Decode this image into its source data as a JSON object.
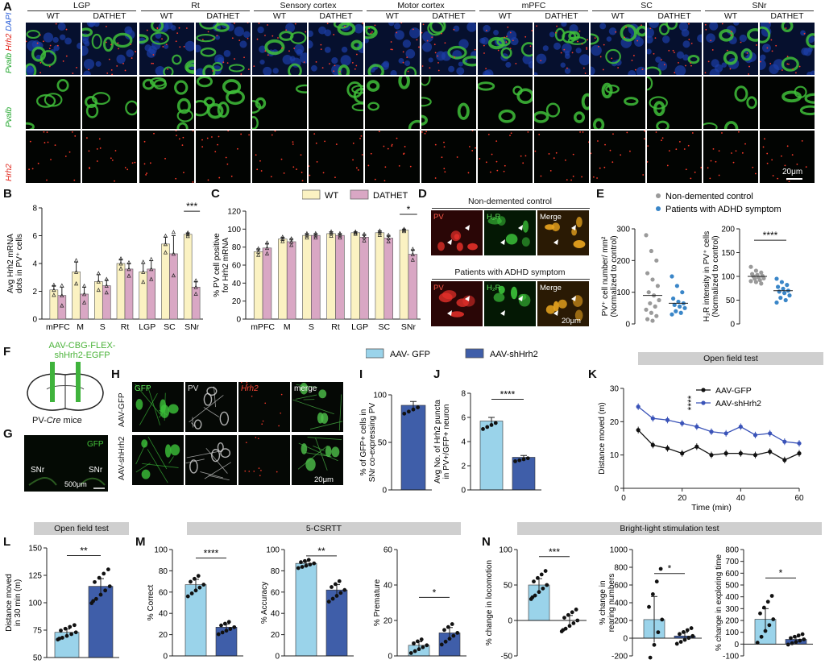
{
  "panels": {
    "A": "A",
    "B": "B",
    "C": "C",
    "D": "D",
    "E": "E",
    "F": "F",
    "G": "G",
    "H": "H",
    "I": "I",
    "J": "J",
    "K": "K",
    "L": "L",
    "M": "M",
    "N": "N"
  },
  "panel_a": {
    "regions": [
      "LGP",
      "Rt",
      "Sensory cortex",
      "Motor cortex",
      "mPFC",
      "SC",
      "SNr"
    ],
    "genotypes": [
      "WT",
      "DATHET"
    ],
    "rows": [
      {
        "parts": [
          {
            "t": "Pvalb",
            "c": "#1fa52a"
          },
          {
            "t": " Hrh2",
            "c": "#e0261c"
          },
          {
            "t": " DAPI",
            "c": "#2b5fd8"
          }
        ]
      },
      {
        "parts": [
          {
            "t": "Pvalb",
            "c": "#1fa52a"
          }
        ]
      },
      {
        "parts": [
          {
            "t": "Hrh2",
            "c": "#e0261c"
          }
        ]
      }
    ],
    "scale": "20μm"
  },
  "legend_bc": {
    "wt": "WT",
    "dathet": "DATHET",
    "wt_color": "#fbf2c2",
    "dathet_color": "#d9a7c4"
  },
  "panel_d": {
    "top_title": "Non-demented control",
    "bottom_title": "Patients with ADHD symptom",
    "labels": [
      "PV",
      "H₂R",
      "Merge"
    ],
    "scale": "20μm"
  },
  "legend_e": {
    "ctrl": "Non-demented control",
    "adhd": "Patients with ADHD symptom",
    "ctrl_color": "#9a9a9a",
    "adhd_color": "#3a86c8"
  },
  "panel_f": {
    "virus": "AAV-CBG-FLEX-\nshHrh2-EGFP",
    "mouse_pre": "PV-",
    "mouse_ital": "Cre",
    "mouse_post": " mice"
  },
  "panel_g": {
    "gfp": "GFP",
    "snr_l": "SNr",
    "snr_r": "SNr",
    "scale": "500μm"
  },
  "panel_h": {
    "cols": [
      "GFP",
      "PV",
      "Hrh2",
      "merge"
    ],
    "rows": [
      "AAV-GFP",
      "AAV-shHrh2"
    ],
    "scale": "20μm"
  },
  "legend_ij": {
    "gfp": "AAV- GFP",
    "sh": "AAV-shHrh2",
    "gfp_color": "#9ad3ea",
    "sh_color": "#3f5ea9"
  },
  "section_titles": {
    "k": "Open field test",
    "l": "Open field test",
    "m": "5-CSRTT",
    "n": "Bright-light stimulation test"
  },
  "chart_data": [
    {
      "panel": "B",
      "type": "bar",
      "title": "",
      "ylabel": "Avg Hrh2 mRNA dots in PV+ cells",
      "ylim": [
        0,
        8
      ],
      "yticks": [
        0,
        2,
        4,
        6,
        8
      ],
      "categories": [
        "mPFC",
        "M",
        "S",
        "Rt",
        "LGP",
        "SC",
        "SNr"
      ],
      "series": [
        {
          "name": "WT",
          "values": [
            2.1,
            3.4,
            2.7,
            4.0,
            3.4,
            5.4,
            6.1
          ],
          "err": [
            0.3,
            0.7,
            0.5,
            0.3,
            0.6,
            0.5,
            0.1
          ]
        },
        {
          "name": "DATHET",
          "values": [
            1.7,
            1.8,
            2.4,
            3.6,
            3.6,
            4.7,
            2.3
          ],
          "err": [
            0.6,
            0.5,
            0.4,
            0.4,
            0.6,
            1.3,
            0.4
          ]
        }
      ],
      "annotations": [
        {
          "text": "***",
          "category": "SNr"
        }
      ]
    },
    {
      "panel": "C",
      "type": "bar",
      "title": "",
      "ylabel": "% PV cell positive for Hrh2 mRNA",
      "ylim": [
        0,
        120
      ],
      "yticks": [
        0,
        20,
        40,
        60,
        80,
        100,
        120
      ],
      "categories": [
        "mPFC",
        "M",
        "S",
        "Rt",
        "LGP",
        "SC",
        "SNr"
      ],
      "series": [
        {
          "name": "WT",
          "values": [
            75,
            89,
            93,
            95,
            96,
            96,
            99
          ],
          "err": [
            3,
            2,
            2,
            2,
            1,
            2,
            1
          ]
        },
        {
          "name": "DATHET",
          "values": [
            79,
            86,
            93,
            93,
            91,
            90,
            72
          ],
          "err": [
            5,
            3,
            2,
            2,
            3,
            3,
            5
          ]
        }
      ],
      "annotations": [
        {
          "text": "*",
          "category": "SNr"
        }
      ]
    },
    {
      "panel": "E-left",
      "type": "scatter",
      "ylabel": "PV+ cell number/ mm² (Normalized to control)",
      "ylim": [
        0,
        300
      ],
      "yticks": [
        0,
        100,
        200,
        300
      ],
      "categories": [
        "Non-demented control",
        "Patients with ADHD symptom"
      ],
      "series": [
        {
          "name": "Non-demented control",
          "values": [
            280,
            230,
            200,
            160,
            140,
            120,
            100,
            90,
            75,
            65,
            55,
            45,
            35,
            25,
            15,
            10
          ]
        },
        {
          "name": "Patients with ADHD symptom",
          "values": [
            150,
            120,
            100,
            80,
            70,
            65,
            60,
            55,
            50,
            40,
            35,
            30
          ]
        }
      ]
    },
    {
      "panel": "E-right",
      "type": "scatter",
      "ylabel": "H2R intensity in PV+ cells (Normalized to control)",
      "ylim": [
        0,
        200
      ],
      "yticks": [
        0,
        50,
        100,
        150,
        200
      ],
      "categories": [
        "Non-demented control",
        "Patients with ADHD symptom"
      ],
      "series": [
        {
          "name": "Non-demented control",
          "values": [
            120,
            112,
            108,
            105,
            103,
            101,
            100,
            98,
            96,
            95,
            92,
            90,
            88,
            85
          ]
        },
        {
          "name": "Patients with ADHD symptom",
          "values": [
            95,
            88,
            82,
            78,
            74,
            70,
            68,
            65,
            60,
            55,
            50,
            45
          ]
        }
      ],
      "annotations": [
        {
          "text": "****"
        }
      ]
    },
    {
      "panel": "I",
      "type": "bar",
      "ylabel": "% of GFP+ cells in SNr co-expressing PV",
      "ylim": [
        0,
        100
      ],
      "yticks": [
        0,
        50,
        100
      ],
      "categories": [
        ""
      ],
      "series": [
        {
          "name": "AAV-shHrh2",
          "values": [
            89
          ],
          "err": [
            4
          ]
        }
      ]
    },
    {
      "panel": "J",
      "type": "bar",
      "ylabel": "Avg No. of Hrh2 puncta in PV+/GFP+ neuron",
      "ylim": [
        0,
        8
      ],
      "yticks": [
        0,
        2,
        4,
        6,
        8
      ],
      "categories": [
        "AAV-GFP",
        "AAV-shHrh2"
      ],
      "series": [
        {
          "values": [
            5.7,
            2.7
          ],
          "err": [
            0.3,
            0.15
          ]
        }
      ],
      "annotations": [
        {
          "text": "****"
        }
      ]
    },
    {
      "panel": "K",
      "type": "line",
      "xlabel": "Time (min)",
      "ylabel": "Distance moved (m)",
      "xlim": [
        0,
        60
      ],
      "ylim": [
        0,
        30
      ],
      "xticks": [
        0,
        20,
        40,
        60
      ],
      "yticks": [
        0,
        10,
        20,
        30
      ],
      "x": [
        5,
        10,
        15,
        20,
        25,
        30,
        35,
        40,
        45,
        50,
        55,
        60
      ],
      "series": [
        {
          "name": "AAV-GFP",
          "values": [
            17.5,
            13,
            12,
            10.5,
            12.5,
            10,
            10.5,
            10.5,
            10,
            11,
            8.5,
            10.5
          ]
        },
        {
          "name": "AAV-shHrh2",
          "values": [
            24.5,
            21,
            20.5,
            19.5,
            18.5,
            17,
            16.5,
            18.5,
            16,
            16.5,
            14,
            13.5
          ]
        }
      ],
      "annotations": [
        {
          "text": "****"
        }
      ]
    },
    {
      "panel": "L",
      "type": "bar",
      "ylabel": "Distance moved in 30 min (m)",
      "ylim": [
        50,
        150
      ],
      "yticks": [
        50,
        75,
        100,
        125,
        150
      ],
      "categories": [
        "AAV-GFP",
        "AAV-shHrh2"
      ],
      "series": [
        {
          "values": [
            73,
            115
          ],
          "err": [
            3,
            7
          ]
        }
      ],
      "annotations": [
        {
          "text": "**"
        }
      ]
    },
    {
      "panel": "M1",
      "type": "bar",
      "ylabel": "% Correct",
      "ylim": [
        0,
        100
      ],
      "yticks": [
        0,
        20,
        40,
        60,
        80,
        100
      ],
      "categories": [
        "AAV-GFP",
        "AAV-shHrh2"
      ],
      "series": [
        {
          "values": [
            67,
            27
          ],
          "err": [
            5,
            3
          ]
        }
      ],
      "annotations": [
        {
          "text": "****"
        }
      ]
    },
    {
      "panel": "M2",
      "type": "bar",
      "ylabel": "% Accuracy",
      "ylim": [
        0,
        100
      ],
      "yticks": [
        0,
        20,
        40,
        60,
        80,
        100
      ],
      "categories": [
        "AAV-GFP",
        "AAV-shHrh2"
      ],
      "series": [
        {
          "values": [
            87,
            62
          ],
          "err": [
            2,
            5
          ]
        }
      ],
      "annotations": [
        {
          "text": "**"
        }
      ]
    },
    {
      "panel": "M3",
      "type": "bar",
      "ylabel": "% Premature",
      "ylim": [
        0,
        60
      ],
      "yticks": [
        0,
        20,
        40,
        60
      ],
      "categories": [
        "AAV-GFP",
        "AAV-shHrh2"
      ],
      "series": [
        {
          "values": [
            6,
            13
          ],
          "err": [
            2,
            3
          ]
        }
      ],
      "annotations": [
        {
          "text": "*"
        }
      ]
    },
    {
      "panel": "N1",
      "type": "bar",
      "ylabel": "% change in locomotion",
      "ylim": [
        -50,
        100
      ],
      "yticks": [
        -50,
        0,
        50,
        100
      ],
      "categories": [
        "AAV-GFP",
        "AAV-shHrh2"
      ],
      "series": [
        {
          "values": [
            50,
            0
          ],
          "err": [
            9,
            7
          ]
        }
      ],
      "annotations": [
        {
          "text": "***"
        }
      ]
    },
    {
      "panel": "N2",
      "type": "bar",
      "ylabel": "% change in rearing numbers",
      "ylim": [
        -200,
        1000
      ],
      "yticks": [
        -200,
        0,
        200,
        400,
        600,
        800,
        1000
      ],
      "categories": [
        "AAV-GFP",
        "AAV-shHrh2"
      ],
      "series": [
        {
          "values": [
            210,
            25
          ],
          "err": [
            260,
            40
          ]
        }
      ],
      "annotations": [
        {
          "text": "*"
        }
      ]
    },
    {
      "panel": "N3",
      "type": "bar",
      "ylabel": "% change in exploring time",
      "ylim": [
        -100,
        800
      ],
      "yticks": [
        -100,
        0,
        100,
        200,
        300,
        400,
        500,
        600,
        700,
        800
      ],
      "categories": [
        "AAV-GFP",
        "AAV-shHrh2"
      ],
      "series": [
        {
          "values": [
            210,
            40
          ],
          "err": [
            90,
            20
          ]
        }
      ],
      "annotations": [
        {
          "text": "*"
        }
      ]
    }
  ]
}
